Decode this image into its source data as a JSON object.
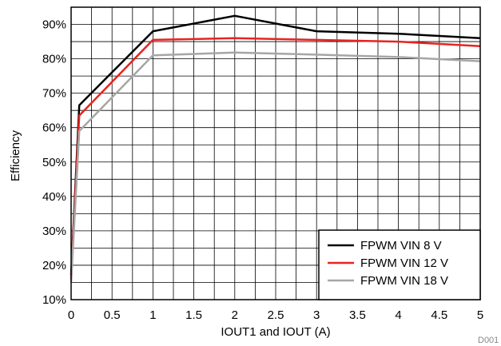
{
  "chart_data": {
    "type": "line",
    "xlabel": "IOUT1 and IOUT (A)",
    "ylabel": "Efficiency",
    "xlim": [
      0,
      5
    ],
    "ylim": [
      10,
      95
    ],
    "x_ticks": [
      0,
      0.5,
      1,
      1.5,
      2,
      2.5,
      3,
      3.5,
      4,
      4.5,
      5
    ],
    "x_tick_labels": [
      "0",
      "0.5",
      "1",
      "1.5",
      "2",
      "2.5",
      "3",
      "3.5",
      "4",
      "4.5",
      "5"
    ],
    "y_ticks": [
      10,
      20,
      30,
      40,
      50,
      60,
      70,
      80,
      90
    ],
    "y_tick_labels": [
      "10%",
      "20%",
      "30%",
      "40%",
      "50%",
      "60%",
      "70%",
      "80%",
      "90%"
    ],
    "grid": true,
    "legend_position": "bottom-right",
    "series": [
      {
        "name": "FPWM VIN 8 V",
        "color": "#000000",
        "points": [
          [
            0,
            17
          ],
          [
            0.1,
            66.5
          ],
          [
            1,
            88
          ],
          [
            2,
            92.5
          ],
          [
            3,
            88
          ],
          [
            4,
            87.3
          ],
          [
            5,
            86
          ]
        ]
      },
      {
        "name": "FPWM VIN 12 V",
        "color": "#e8231f",
        "points": [
          [
            0,
            16
          ],
          [
            0.1,
            63.5
          ],
          [
            1,
            85.5
          ],
          [
            2,
            86
          ],
          [
            3,
            85.5
          ],
          [
            4,
            85
          ],
          [
            5,
            83.7
          ]
        ]
      },
      {
        "name": "FPWM VIN 18 V",
        "color": "#a6a6a6",
        "points": [
          [
            0,
            15
          ],
          [
            0.1,
            59
          ],
          [
            1,
            81
          ],
          [
            2,
            81.8
          ],
          [
            3,
            81.2
          ],
          [
            4,
            80.5
          ],
          [
            5,
            79.3
          ]
        ]
      }
    ]
  },
  "figure_code": "D001"
}
